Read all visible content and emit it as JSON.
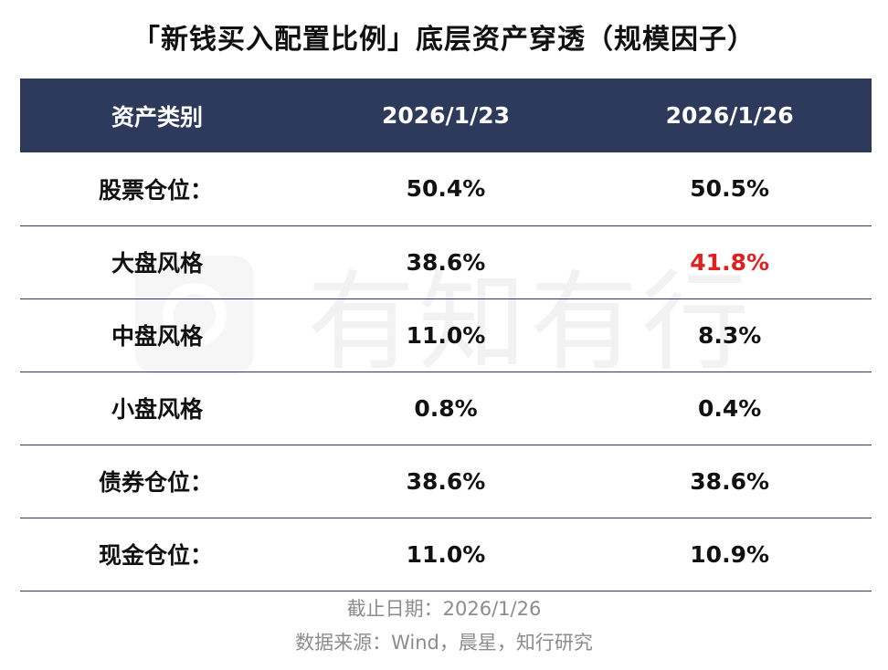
{
  "title": "「新钱买入配置比例」底层资产穿透（规模因子）",
  "watermark": "有知有行",
  "table": {
    "headers": [
      "资产类别",
      "2026/1/23",
      "2026/1/26"
    ],
    "rows": [
      {
        "category": "股票仓位：",
        "v1": "50.4%",
        "v2": "50.5%"
      },
      {
        "category": "大盘风格",
        "v1": "38.6%",
        "v2": "41.8%"
      },
      {
        "category": "中盘风格",
        "v1": "11.0%",
        "v2": "8.3%"
      },
      {
        "category": "小盘风格",
        "v1": "0.8%",
        "v2": "0.4%"
      },
      {
        "category": "债券仓位：",
        "v1": "38.6%",
        "v2": "38.6%"
      },
      {
        "category": "现金仓位：",
        "v1": "11.0%",
        "v2": "10.9%"
      }
    ]
  },
  "footer": {
    "cutoff": "截止日期：2026/1/26",
    "source": "数据来源：Wind，晨星，知行研究"
  },
  "colors": {
    "header_bg": "#2e3a5c",
    "highlight": "#e02020",
    "note": "#8c8c8c"
  },
  "chart_data": {
    "type": "table",
    "title": "「新钱买入配置比例」底层资产穿透（规模因子）",
    "columns": [
      "资产类别",
      "2026/1/23",
      "2026/1/26"
    ],
    "rows": [
      [
        "股票仓位：",
        "50.4%",
        "50.5%"
      ],
      [
        "大盘风格",
        "38.6%",
        "41.8%"
      ],
      [
        "中盘风格",
        "11.0%",
        "8.3%"
      ],
      [
        "小盘风格",
        "0.8%",
        "0.4%"
      ],
      [
        "债券仓位：",
        "38.6%",
        "38.6%"
      ],
      [
        "现金仓位：",
        "11.0%",
        "10.9%"
      ]
    ],
    "highlighted_cells": [
      {
        "row": 1,
        "column": 2,
        "color": "#e02020"
      }
    ]
  }
}
